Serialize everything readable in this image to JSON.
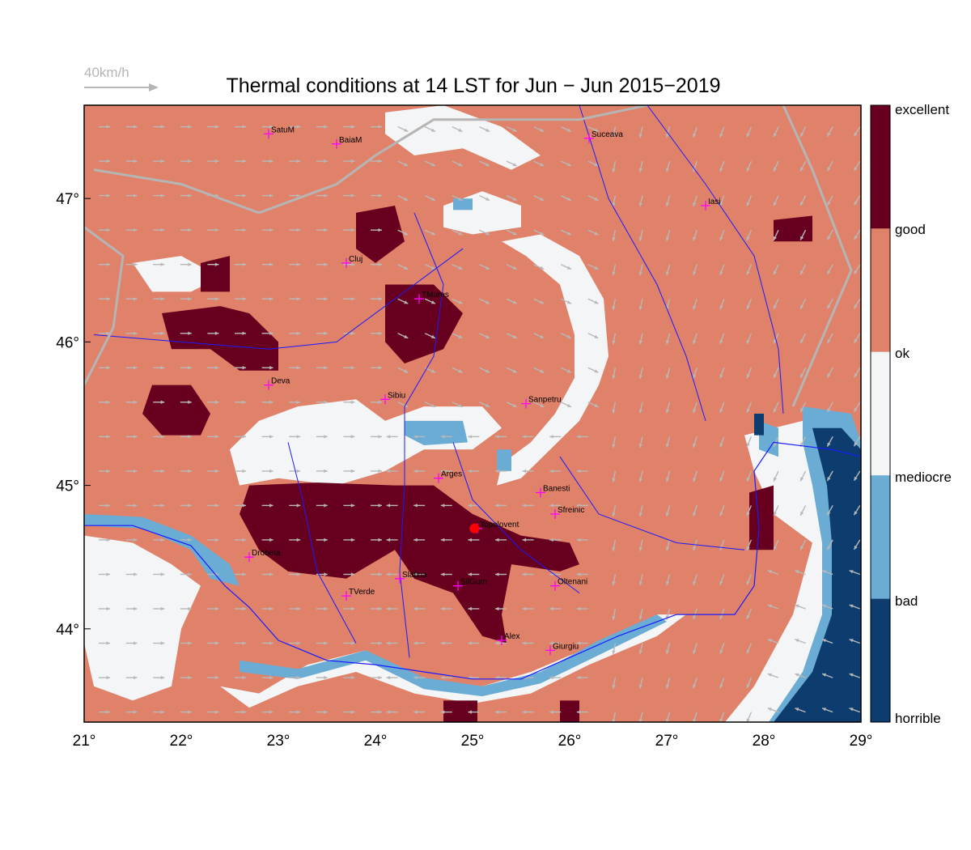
{
  "title": "Thermal conditions at 14 LST for Jun − Jun  2015−2019",
  "wind_reference": {
    "label": "40km/h",
    "icon": "arrow-right-icon"
  },
  "colors": {
    "excellent": "#67001f",
    "good": "#67001f",
    "ok": "#e0826a",
    "mediocre": "#f4f5f6",
    "bad": "#6aacd4",
    "horrible": "#0c3d6e",
    "river": "#1a1aff",
    "border": "#b5b5b5",
    "city_marker": "#ff00ff",
    "highlight": "#ff0000",
    "wind_arrow": "#b8b8b8"
  },
  "legend": {
    "labels": [
      "excellent",
      "good",
      "ok",
      "mediocre",
      "bad",
      "horrible"
    ]
  },
  "axes": {
    "lon_ticks": [
      "21°",
      "22°",
      "23°",
      "24°",
      "25°",
      "26°",
      "27°",
      "28°",
      "29°"
    ],
    "lat_ticks": [
      "47°",
      "46°",
      "45°",
      "44°"
    ]
  },
  "chart_data": {
    "type": "heatmap",
    "title": "Thermal conditions at 14 LST for Jun − Jun  2015−2019",
    "xlabel": "",
    "ylabel": "",
    "xlim": [
      21,
      29
    ],
    "ylim": [
      43.35,
      47.65
    ],
    "x_ticks": [
      21,
      22,
      23,
      24,
      25,
      26,
      27,
      28,
      29
    ],
    "y_ticks": [
      44,
      45,
      46,
      47
    ],
    "color_scale": [
      "horrible",
      "bad",
      "mediocre",
      "ok",
      "good",
      "excellent"
    ],
    "cities": [
      {
        "name": "SatuM",
        "lon": 22.9,
        "lat": 47.45
      },
      {
        "name": "BaiaM",
        "lon": 23.6,
        "lat": 47.38
      },
      {
        "name": "Suceava",
        "lon": 26.2,
        "lat": 47.42
      },
      {
        "name": "Iasi",
        "lon": 27.4,
        "lat": 46.95
      },
      {
        "name": "Cluj",
        "lon": 23.7,
        "lat": 46.55
      },
      {
        "name": "TMures",
        "lon": 24.45,
        "lat": 46.3
      },
      {
        "name": "Deva",
        "lon": 22.9,
        "lat": 45.7
      },
      {
        "name": "Sibiu",
        "lon": 24.1,
        "lat": 45.6
      },
      {
        "name": "Sanpetru",
        "lon": 25.55,
        "lat": 45.57
      },
      {
        "name": "Arges",
        "lon": 24.65,
        "lat": 45.05
      },
      {
        "name": "Banesti",
        "lon": 25.7,
        "lat": 44.95
      },
      {
        "name": "Sfreinic",
        "lon": 25.85,
        "lat": 44.8
      },
      {
        "name": "Topolovent",
        "lon": 25.05,
        "lat": 44.7
      },
      {
        "name": "Drobeta",
        "lon": 22.7,
        "lat": 44.5
      },
      {
        "name": "Slatina",
        "lon": 24.25,
        "lat": 44.35
      },
      {
        "name": "SilGum",
        "lon": 24.85,
        "lat": 44.3
      },
      {
        "name": "Oltenani",
        "lon": 25.85,
        "lat": 44.3
      },
      {
        "name": "TVerde",
        "lon": 23.7,
        "lat": 44.23
      },
      {
        "name": "Alex",
        "lon": 25.3,
        "lat": 43.92
      },
      {
        "name": "Giurgiu",
        "lon": 25.8,
        "lat": 43.85
      }
    ],
    "highlight_point": {
      "name": "Topolovent",
      "lon": 25.02,
      "lat": 44.7
    }
  }
}
